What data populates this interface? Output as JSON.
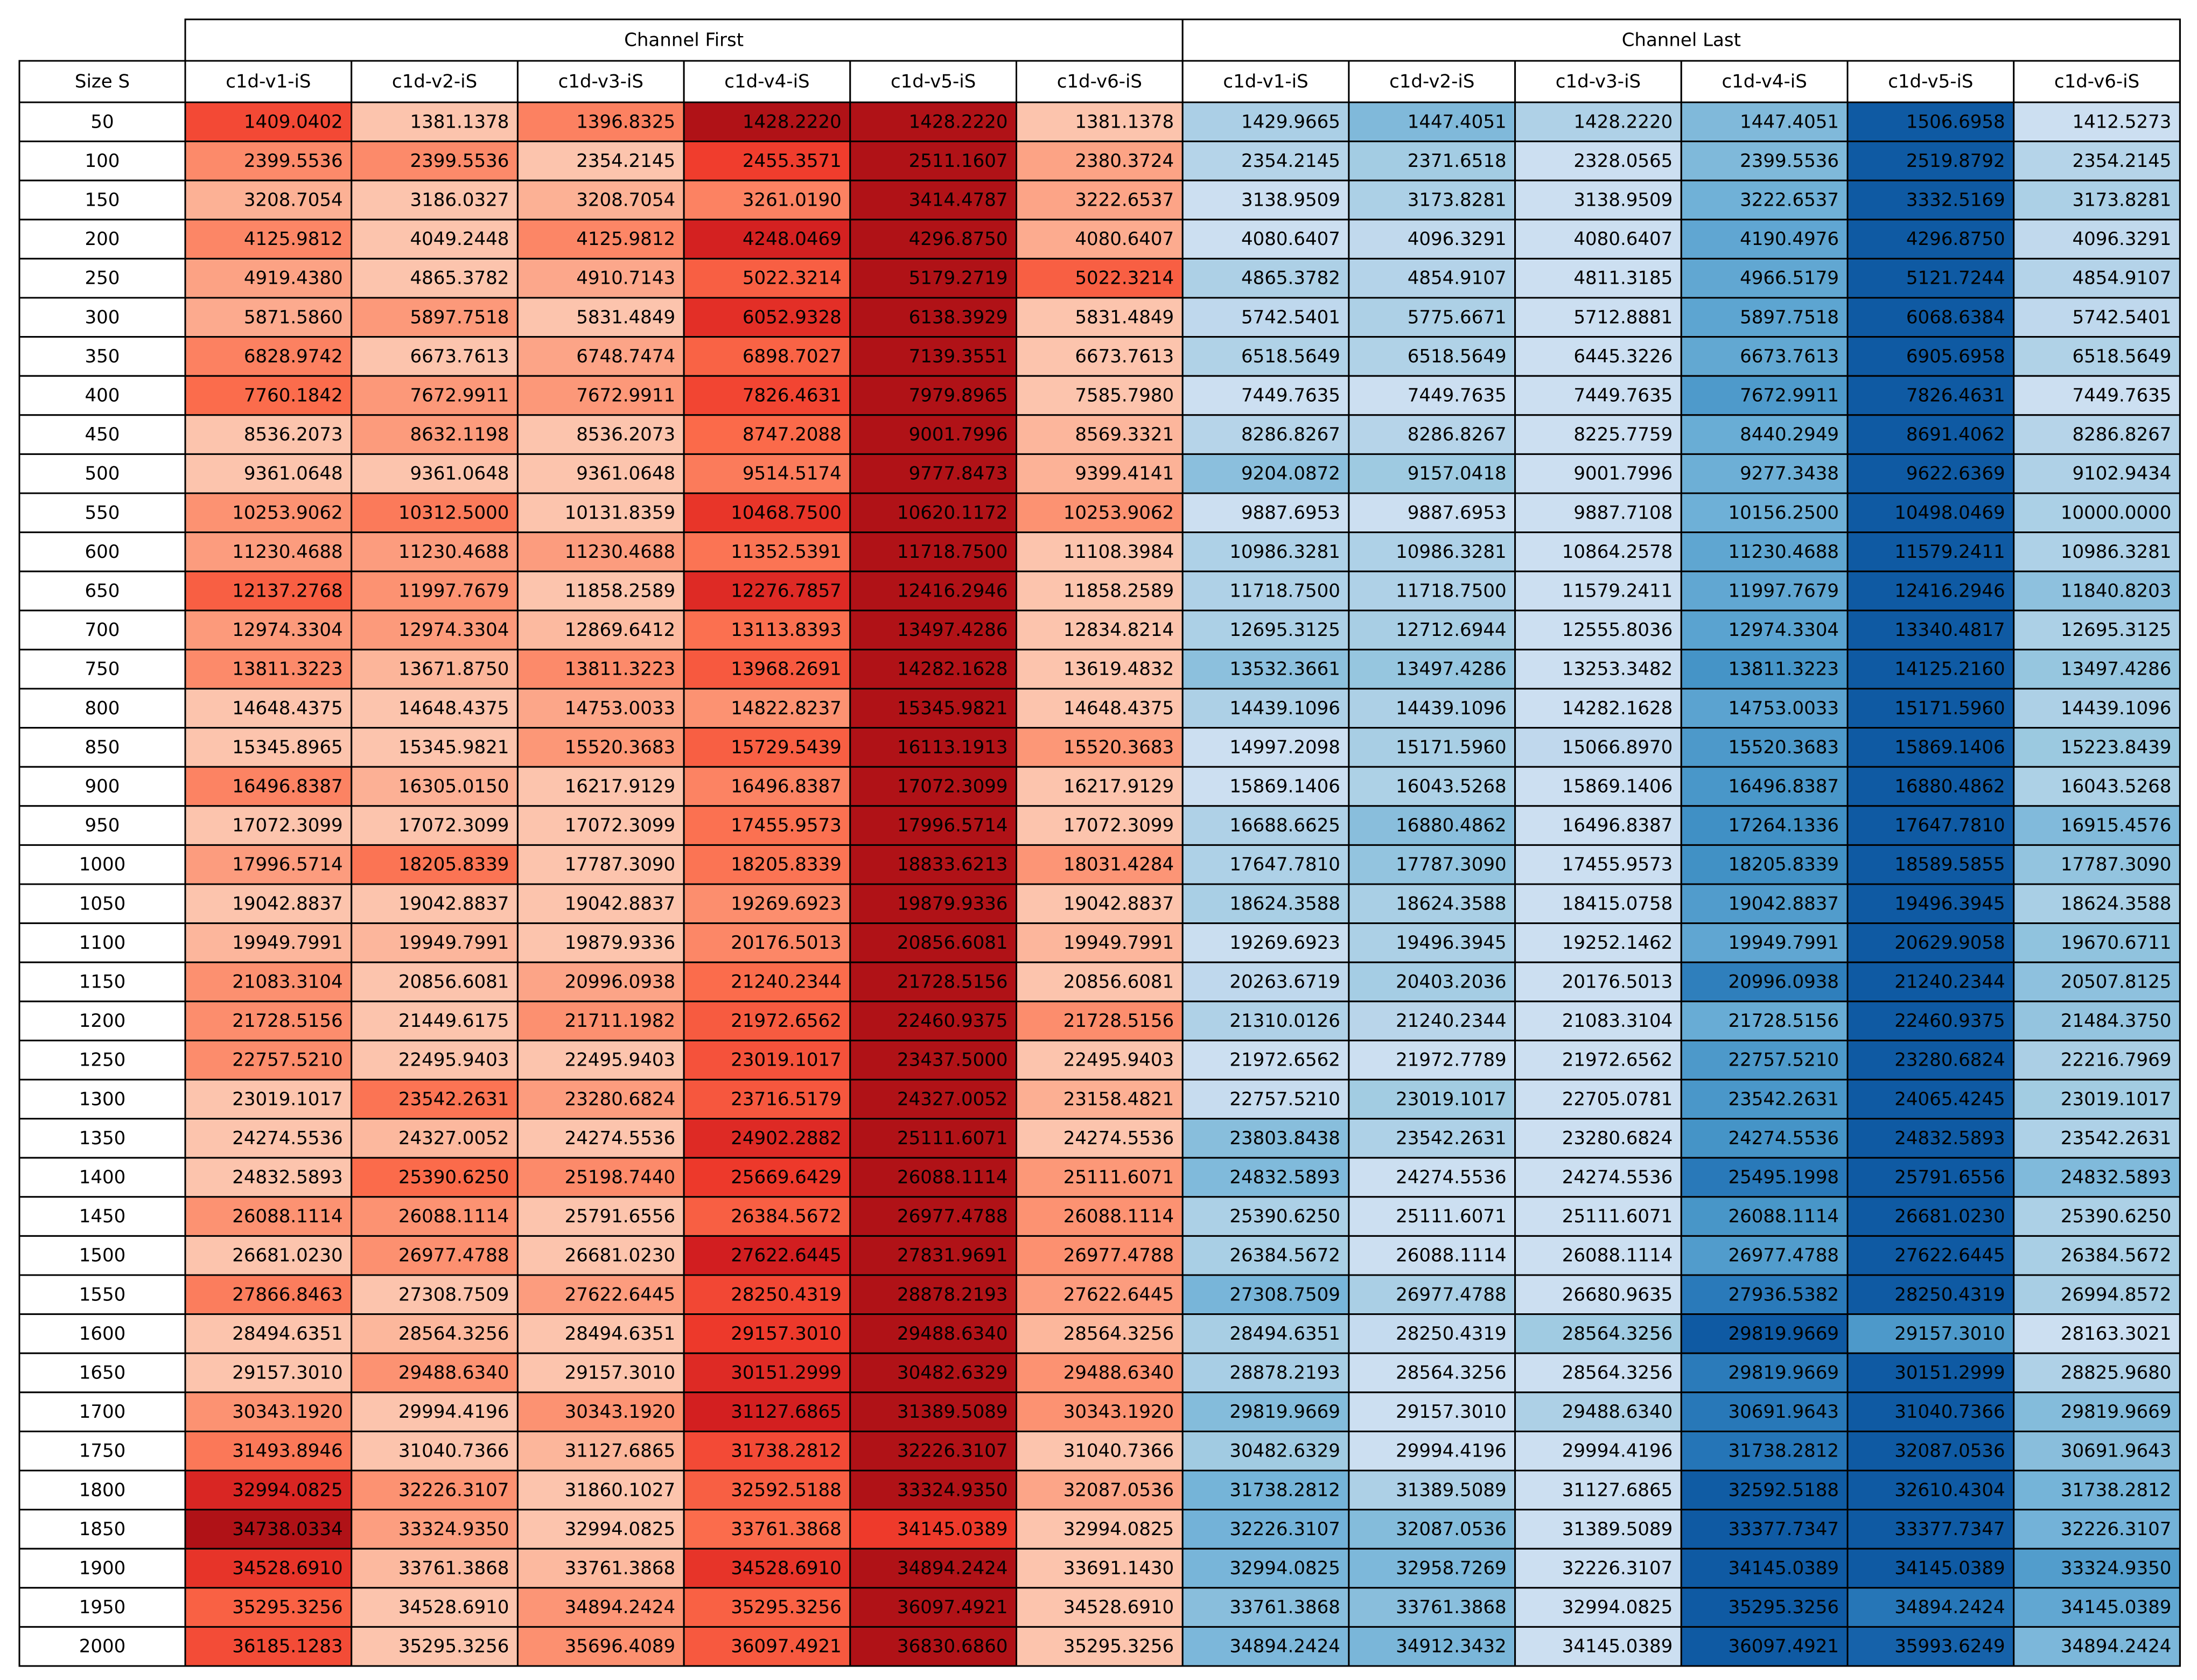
{
  "chart_data": {
    "type": "heatmap",
    "row_header": "Size S",
    "groups": [
      {
        "name": "Channel First",
        "colormap": "red"
      },
      {
        "name": "Channel Last",
        "colormap": "blue"
      }
    ],
    "columns": [
      "c1d-v1-iS",
      "c1d-v2-iS",
      "c1d-v3-iS",
      "c1d-v4-iS",
      "c1d-v5-iS",
      "c1d-v6-iS"
    ],
    "rows": [
      {
        "size": "50",
        "first": [
          "1409.0402",
          "1381.1378",
          "1396.8325",
          "1428.2220",
          "1428.2220",
          "1381.1378"
        ],
        "last": [
          "1429.9665",
          "1447.4051",
          "1428.2220",
          "1447.4051",
          "1506.6958",
          "1412.5273"
        ]
      },
      {
        "size": "100",
        "first": [
          "2399.5536",
          "2399.5536",
          "2354.2145",
          "2455.3571",
          "2511.1607",
          "2380.3724"
        ],
        "last": [
          "2354.2145",
          "2371.6518",
          "2328.0565",
          "2399.5536",
          "2519.8792",
          "2354.2145"
        ]
      },
      {
        "size": "150",
        "first": [
          "3208.7054",
          "3186.0327",
          "3208.7054",
          "3261.0190",
          "3414.4787",
          "3222.6537"
        ],
        "last": [
          "3138.9509",
          "3173.8281",
          "3138.9509",
          "3222.6537",
          "3332.5169",
          "3173.8281"
        ]
      },
      {
        "size": "200",
        "first": [
          "4125.9812",
          "4049.2448",
          "4125.9812",
          "4248.0469",
          "4296.8750",
          "4080.6407"
        ],
        "last": [
          "4080.6407",
          "4096.3291",
          "4080.6407",
          "4190.4976",
          "4296.8750",
          "4096.3291"
        ]
      },
      {
        "size": "250",
        "first": [
          "4919.4380",
          "4865.3782",
          "4910.7143",
          "5022.3214",
          "5179.2719",
          "5022.3214"
        ],
        "last": [
          "4865.3782",
          "4854.9107",
          "4811.3185",
          "4966.5179",
          "5121.7244",
          "4854.9107"
        ]
      },
      {
        "size": "300",
        "first": [
          "5871.5860",
          "5897.7518",
          "5831.4849",
          "6052.9328",
          "6138.3929",
          "5831.4849"
        ],
        "last": [
          "5742.5401",
          "5775.6671",
          "5712.8881",
          "5897.7518",
          "6068.6384",
          "5742.5401"
        ]
      },
      {
        "size": "350",
        "first": [
          "6828.9742",
          "6673.7613",
          "6748.7474",
          "6898.7027",
          "7139.3551",
          "6673.7613"
        ],
        "last": [
          "6518.5649",
          "6518.5649",
          "6445.3226",
          "6673.7613",
          "6905.6958",
          "6518.5649"
        ]
      },
      {
        "size": "400",
        "first": [
          "7760.1842",
          "7672.9911",
          "7672.9911",
          "7826.4631",
          "7979.8965",
          "7585.7980"
        ],
        "last": [
          "7449.7635",
          "7449.7635",
          "7449.7635",
          "7672.9911",
          "7826.4631",
          "7449.7635"
        ]
      },
      {
        "size": "450",
        "first": [
          "8536.2073",
          "8632.1198",
          "8536.2073",
          "8747.2088",
          "9001.7996",
          "8569.3321"
        ],
        "last": [
          "8286.8267",
          "8286.8267",
          "8225.7759",
          "8440.2949",
          "8691.4062",
          "8286.8267"
        ]
      },
      {
        "size": "500",
        "first": [
          "9361.0648",
          "9361.0648",
          "9361.0648",
          "9514.5174",
          "9777.8473",
          "9399.4141"
        ],
        "last": [
          "9204.0872",
          "9157.0418",
          "9001.7996",
          "9277.3438",
          "9622.6369",
          "9102.9434"
        ]
      },
      {
        "size": "550",
        "first": [
          "10253.9062",
          "10312.5000",
          "10131.8359",
          "10468.7500",
          "10620.1172",
          "10253.9062"
        ],
        "last": [
          "9887.6953",
          "9887.6953",
          "9887.7108",
          "10156.2500",
          "10498.0469",
          "10000.0000"
        ]
      },
      {
        "size": "600",
        "first": [
          "11230.4688",
          "11230.4688",
          "11230.4688",
          "11352.5391",
          "11718.7500",
          "11108.3984"
        ],
        "last": [
          "10986.3281",
          "10986.3281",
          "10864.2578",
          "11230.4688",
          "11579.2411",
          "10986.3281"
        ]
      },
      {
        "size": "650",
        "first": [
          "12137.2768",
          "11997.7679",
          "11858.2589",
          "12276.7857",
          "12416.2946",
          "11858.2589"
        ],
        "last": [
          "11718.7500",
          "11718.7500",
          "11579.2411",
          "11997.7679",
          "12416.2946",
          "11840.8203"
        ]
      },
      {
        "size": "700",
        "first": [
          "12974.3304",
          "12974.3304",
          "12869.6412",
          "13113.8393",
          "13497.4286",
          "12834.8214"
        ],
        "last": [
          "12695.3125",
          "12712.6944",
          "12555.8036",
          "12974.3304",
          "13340.4817",
          "12695.3125"
        ]
      },
      {
        "size": "750",
        "first": [
          "13811.3223",
          "13671.8750",
          "13811.3223",
          "13968.2691",
          "14282.1628",
          "13619.4832"
        ],
        "last": [
          "13532.3661",
          "13497.4286",
          "13253.3482",
          "13811.3223",
          "14125.2160",
          "13497.4286"
        ]
      },
      {
        "size": "800",
        "first": [
          "14648.4375",
          "14648.4375",
          "14753.0033",
          "14822.8237",
          "15345.9821",
          "14648.4375"
        ],
        "last": [
          "14439.1096",
          "14439.1096",
          "14282.1628",
          "14753.0033",
          "15171.5960",
          "14439.1096"
        ]
      },
      {
        "size": "850",
        "first": [
          "15345.8965",
          "15345.9821",
          "15520.3683",
          "15729.5439",
          "16113.1913",
          "15520.3683"
        ],
        "last": [
          "14997.2098",
          "15171.5960",
          "15066.8970",
          "15520.3683",
          "15869.1406",
          "15223.8439"
        ]
      },
      {
        "size": "900",
        "first": [
          "16496.8387",
          "16305.0150",
          "16217.9129",
          "16496.8387",
          "17072.3099",
          "16217.9129"
        ],
        "last": [
          "15869.1406",
          "16043.5268",
          "15869.1406",
          "16496.8387",
          "16880.4862",
          "16043.5268"
        ]
      },
      {
        "size": "950",
        "first": [
          "17072.3099",
          "17072.3099",
          "17072.3099",
          "17455.9573",
          "17996.5714",
          "17072.3099"
        ],
        "last": [
          "16688.6625",
          "16880.4862",
          "16496.8387",
          "17264.1336",
          "17647.7810",
          "16915.4576"
        ]
      },
      {
        "size": "1000",
        "first": [
          "17996.5714",
          "18205.8339",
          "17787.3090",
          "18205.8339",
          "18833.6213",
          "18031.4284"
        ],
        "last": [
          "17647.7810",
          "17787.3090",
          "17455.9573",
          "18205.8339",
          "18589.5855",
          "17787.3090"
        ]
      },
      {
        "size": "1050",
        "first": [
          "19042.8837",
          "19042.8837",
          "19042.8837",
          "19269.6923",
          "19879.9336",
          "19042.8837"
        ],
        "last": [
          "18624.3588",
          "18624.3588",
          "18415.0758",
          "19042.8837",
          "19496.3945",
          "18624.3588"
        ]
      },
      {
        "size": "1100",
        "first": [
          "19949.7991",
          "19949.7991",
          "19879.9336",
          "20176.5013",
          "20856.6081",
          "19949.7991"
        ],
        "last": [
          "19269.6923",
          "19496.3945",
          "19252.1462",
          "19949.7991",
          "20629.9058",
          "19670.6711"
        ]
      },
      {
        "size": "1150",
        "first": [
          "21083.3104",
          "20856.6081",
          "20996.0938",
          "21240.2344",
          "21728.5156",
          "20856.6081"
        ],
        "last": [
          "20263.6719",
          "20403.2036",
          "20176.5013",
          "20996.0938",
          "21240.2344",
          "20507.8125"
        ]
      },
      {
        "size": "1200",
        "first": [
          "21728.5156",
          "21449.6175",
          "21711.1982",
          "21972.6562",
          "22460.9375",
          "21728.5156"
        ],
        "last": [
          "21310.0126",
          "21240.2344",
          "21083.3104",
          "21728.5156",
          "22460.9375",
          "21484.3750"
        ]
      },
      {
        "size": "1250",
        "first": [
          "22757.5210",
          "22495.9403",
          "22495.9403",
          "23019.1017",
          "23437.5000",
          "22495.9403"
        ],
        "last": [
          "21972.6562",
          "21972.7789",
          "21972.6562",
          "22757.5210",
          "23280.6824",
          "22216.7969"
        ]
      },
      {
        "size": "1300",
        "first": [
          "23019.1017",
          "23542.2631",
          "23280.6824",
          "23716.5179",
          "24327.0052",
          "23158.4821"
        ],
        "last": [
          "22757.5210",
          "23019.1017",
          "22705.0781",
          "23542.2631",
          "24065.4245",
          "23019.1017"
        ]
      },
      {
        "size": "1350",
        "first": [
          "24274.5536",
          "24327.0052",
          "24274.5536",
          "24902.2882",
          "25111.6071",
          "24274.5536"
        ],
        "last": [
          "23803.8438",
          "23542.2631",
          "23280.6824",
          "24274.5536",
          "24832.5893",
          "23542.2631"
        ]
      },
      {
        "size": "1400",
        "first": [
          "24832.5893",
          "25390.6250",
          "25198.7440",
          "25669.6429",
          "26088.1114",
          "25111.6071"
        ],
        "last": [
          "24832.5893",
          "24274.5536",
          "24274.5536",
          "25495.1998",
          "25791.6556",
          "24832.5893"
        ]
      },
      {
        "size": "1450",
        "first": [
          "26088.1114",
          "26088.1114",
          "25791.6556",
          "26384.5672",
          "26977.4788",
          "26088.1114"
        ],
        "last": [
          "25390.6250",
          "25111.6071",
          "25111.6071",
          "26088.1114",
          "26681.0230",
          "25390.6250"
        ]
      },
      {
        "size": "1500",
        "first": [
          "26681.0230",
          "26977.4788",
          "26681.0230",
          "27622.6445",
          "27831.9691",
          "26977.4788"
        ],
        "last": [
          "26384.5672",
          "26088.1114",
          "26088.1114",
          "26977.4788",
          "27622.6445",
          "26384.5672"
        ]
      },
      {
        "size": "1550",
        "first": [
          "27866.8463",
          "27308.7509",
          "27622.6445",
          "28250.4319",
          "28878.2193",
          "27622.6445"
        ],
        "last": [
          "27308.7509",
          "26977.4788",
          "26680.9635",
          "27936.5382",
          "28250.4319",
          "26994.8572"
        ]
      },
      {
        "size": "1600",
        "first": [
          "28494.6351",
          "28564.3256",
          "28494.6351",
          "29157.3010",
          "29488.6340",
          "28564.3256"
        ],
        "last": [
          "28494.6351",
          "28250.4319",
          "28564.3256",
          "29819.9669",
          "29157.3010",
          "28163.3021"
        ]
      },
      {
        "size": "1650",
        "first": [
          "29157.3010",
          "29488.6340",
          "29157.3010",
          "30151.2999",
          "30482.6329",
          "29488.6340"
        ],
        "last": [
          "28878.2193",
          "28564.3256",
          "28564.3256",
          "29819.9669",
          "30151.2999",
          "28825.9680"
        ]
      },
      {
        "size": "1700",
        "first": [
          "30343.1920",
          "29994.4196",
          "30343.1920",
          "31127.6865",
          "31389.5089",
          "30343.1920"
        ],
        "last": [
          "29819.9669",
          "29157.3010",
          "29488.6340",
          "30691.9643",
          "31040.7366",
          "29819.9669"
        ]
      },
      {
        "size": "1750",
        "first": [
          "31493.8946",
          "31040.7366",
          "31127.6865",
          "31738.2812",
          "32226.3107",
          "31040.7366"
        ],
        "last": [
          "30482.6329",
          "29994.4196",
          "29994.4196",
          "31738.2812",
          "32087.0536",
          "30691.9643"
        ]
      },
      {
        "size": "1800",
        "first": [
          "32994.0825",
          "32226.3107",
          "31860.1027",
          "32592.5188",
          "33324.9350",
          "32087.0536"
        ],
        "last": [
          "31738.2812",
          "31389.5089",
          "31127.6865",
          "32592.5188",
          "32610.4304",
          "31738.2812"
        ]
      },
      {
        "size": "1850",
        "first": [
          "34738.0334",
          "33324.9350",
          "32994.0825",
          "33761.3868",
          "34145.0389",
          "32994.0825"
        ],
        "last": [
          "32226.3107",
          "32087.0536",
          "31389.5089",
          "33377.7347",
          "33377.7347",
          "32226.3107"
        ]
      },
      {
        "size": "1900",
        "first": [
          "34528.6910",
          "33761.3868",
          "33761.3868",
          "34528.6910",
          "34894.2424",
          "33691.1430"
        ],
        "last": [
          "32994.0825",
          "32958.7269",
          "32226.3107",
          "34145.0389",
          "34145.0389",
          "33324.9350"
        ]
      },
      {
        "size": "1950",
        "first": [
          "35295.3256",
          "34528.6910",
          "34894.2424",
          "35295.3256",
          "36097.4921",
          "34528.6910"
        ],
        "last": [
          "33761.3868",
          "33761.3868",
          "32994.0825",
          "35295.3256",
          "34894.2424",
          "34145.0389"
        ]
      },
      {
        "size": "2000",
        "first": [
          "36185.1283",
          "35295.3256",
          "35696.4089",
          "36097.4921",
          "36830.6860",
          "35295.3256"
        ],
        "last": [
          "34894.2424",
          "34912.3432",
          "34145.0389",
          "36097.4921",
          "35993.6249",
          "34894.2424"
        ]
      }
    ]
  }
}
